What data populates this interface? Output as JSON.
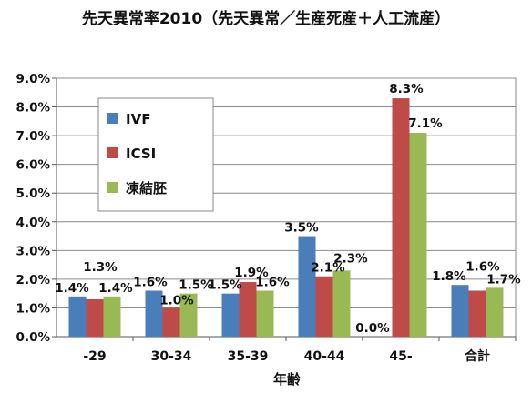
{
  "chart_data": {
    "type": "bar",
    "title": "先天異常率2010（先天異常／生産死産＋人工流産）",
    "xlabel": "年齢",
    "ylabel": "",
    "categories": [
      "-29",
      "30-34",
      "35-39",
      "40-44",
      "45-",
      "合計"
    ],
    "ylim": [
      0,
      9.0
    ],
    "y_ticks": [
      "0.0%",
      "1.0%",
      "2.0%",
      "3.0%",
      "4.0%",
      "5.0%",
      "6.0%",
      "7.0%",
      "8.0%",
      "9.0%"
    ],
    "series": [
      {
        "name": "IVF",
        "color": "#4a7ebb",
        "values": [
          1.4,
          1.6,
          1.5,
          3.5,
          0.0,
          1.8
        ],
        "labels": [
          "1.4%",
          "1.6%",
          "1.5%",
          "3.5%",
          "0.0%",
          "1.8%"
        ]
      },
      {
        "name": "ICSI",
        "color": "#be4b48",
        "values": [
          1.3,
          1.0,
          1.9,
          2.1,
          8.3,
          1.6
        ],
        "labels": [
          "1.3%",
          "1.0%",
          "1.9%",
          "2.1%",
          "8.3%",
          "1.6%"
        ]
      },
      {
        "name": "凍結胚",
        "color": "#98b954",
        "values": [
          1.4,
          1.5,
          1.6,
          2.3,
          7.1,
          1.7
        ],
        "labels": [
          "1.4%",
          "1.5%",
          "1.6%",
          "2.3%",
          "7.1%",
          "1.7%"
        ]
      }
    ],
    "grid": true,
    "legend_position": "top-left"
  }
}
